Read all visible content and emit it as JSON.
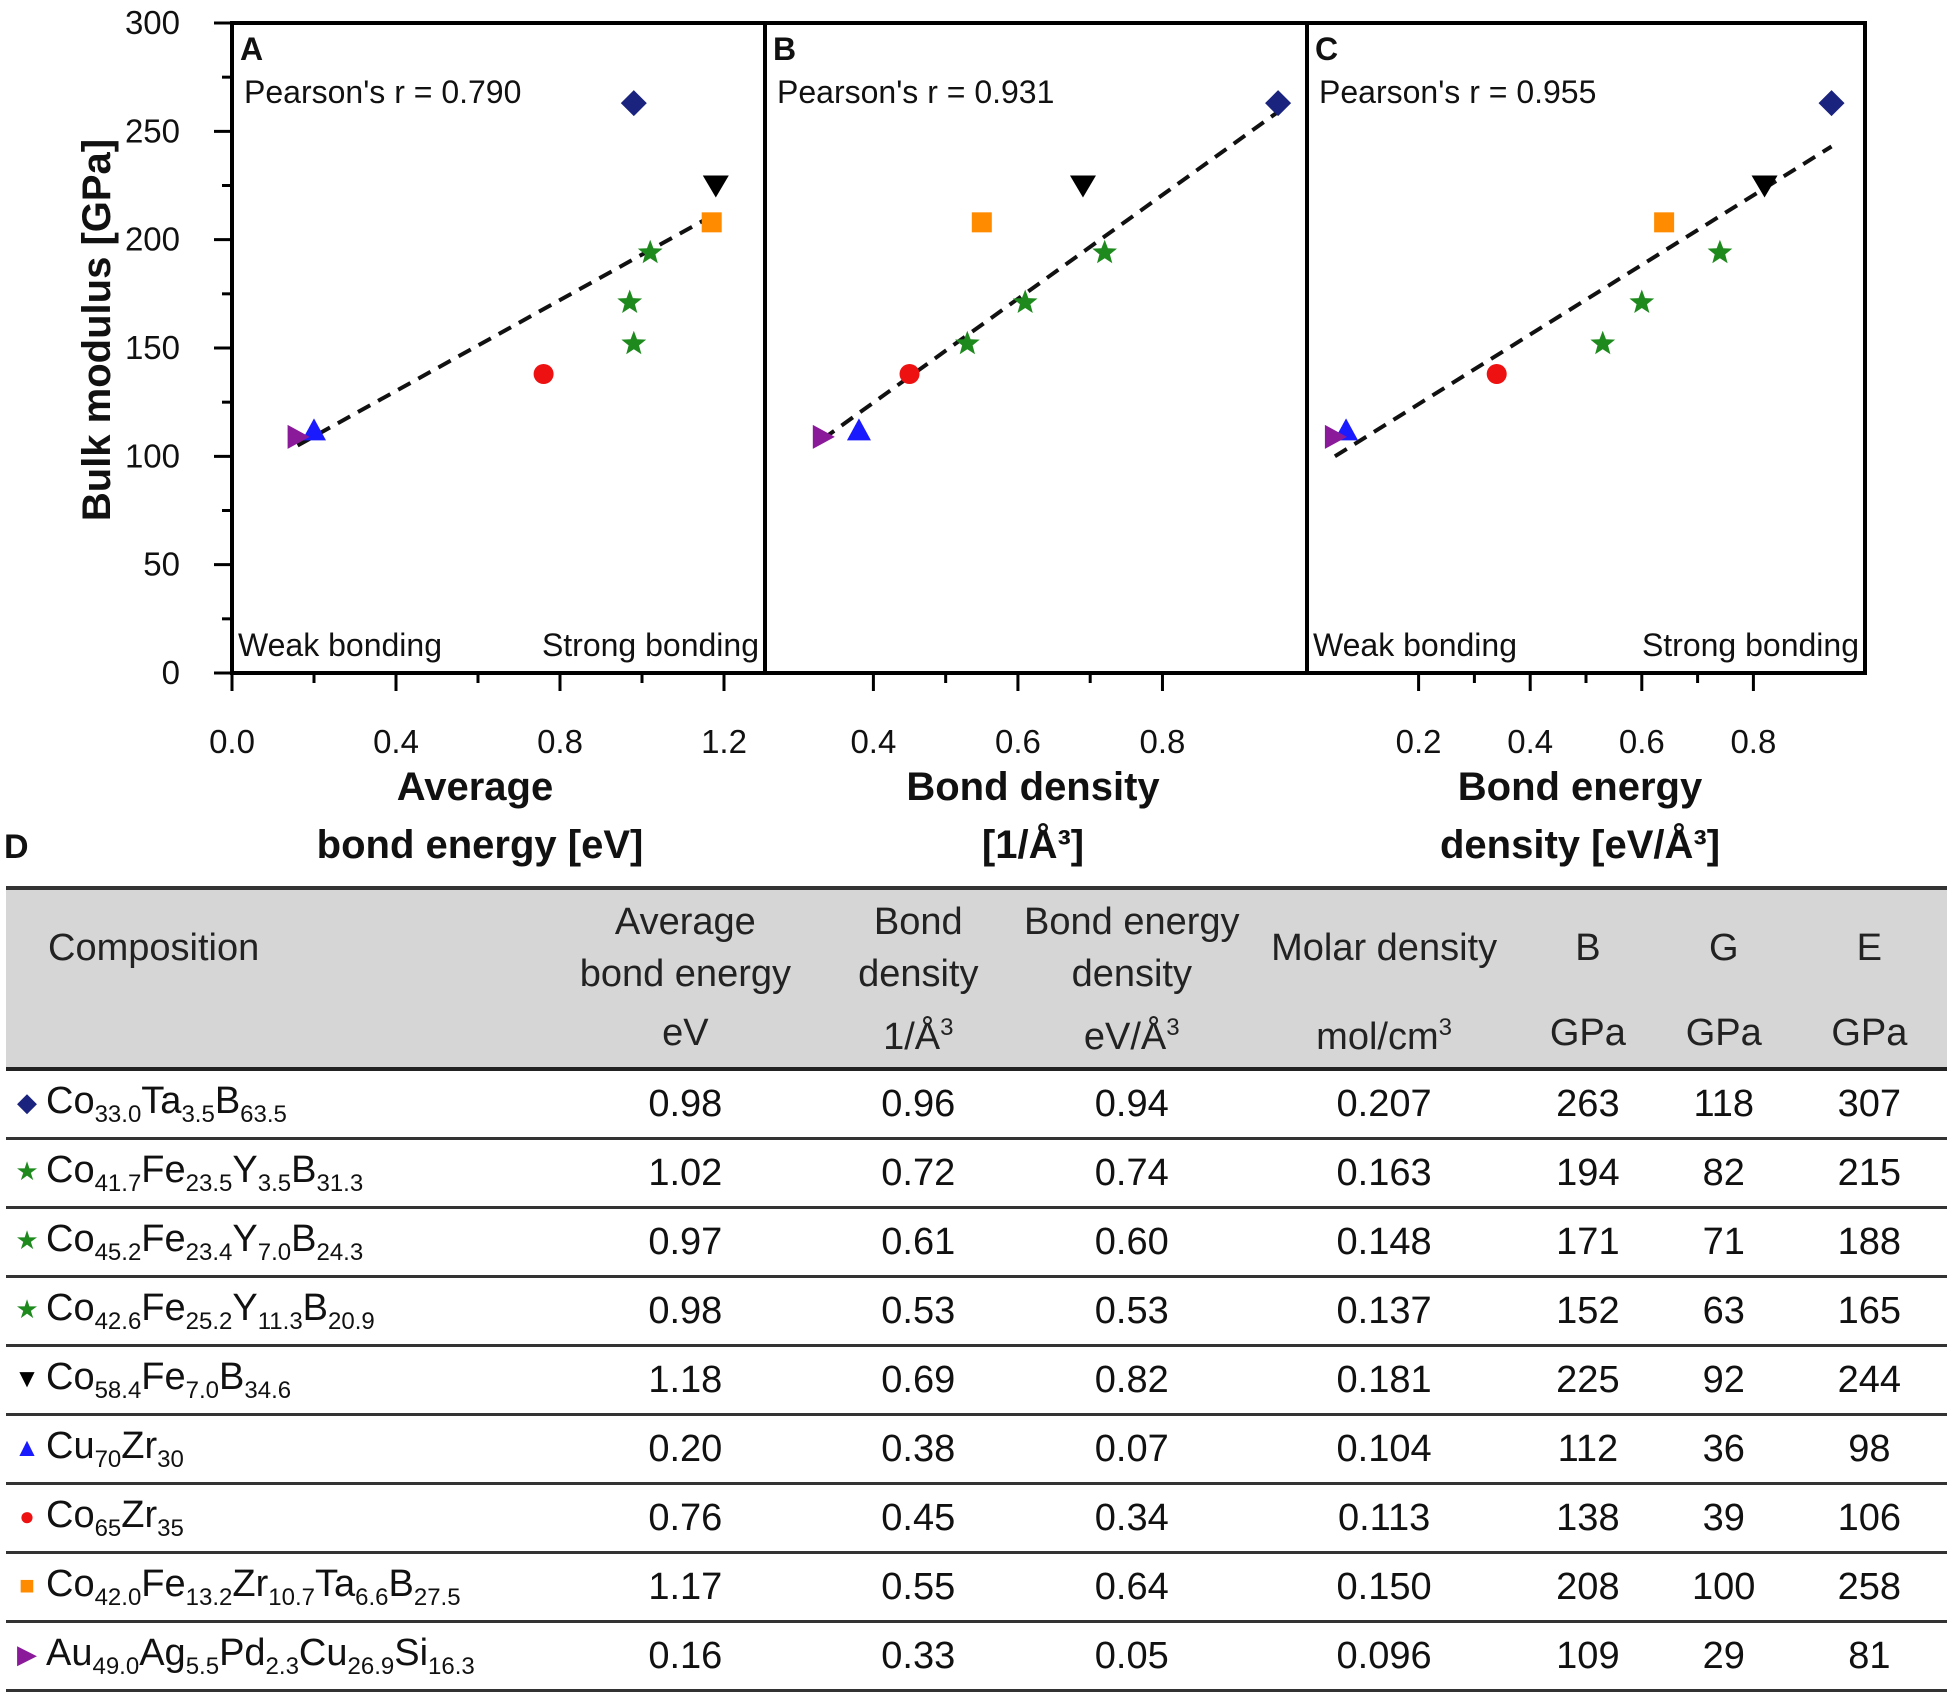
{
  "chart_data": [
    {
      "type": "scatter",
      "panel": "A",
      "annotation": "Pearson's r = 0.790",
      "notes": [
        "Weak bonding",
        "Strong bonding"
      ],
      "xlabel_lines": [
        "Average",
        "bond energy [eV]"
      ],
      "ylabel": "Bulk modulus [GPa]",
      "xlim": [
        0.0,
        1.3
      ],
      "ylim": [
        0,
        300
      ],
      "xticks": [
        "0.0",
        "0.4",
        "0.8",
        "1.2"
      ],
      "xtick_values": [
        0.0,
        0.4,
        0.8,
        1.2
      ],
      "yticks": [
        "0",
        "50",
        "100",
        "150",
        "200",
        "250",
        "300"
      ],
      "ytick_values": [
        0,
        50,
        100,
        150,
        200,
        250,
        300
      ],
      "x": [
        0.98,
        1.02,
        0.97,
        0.98,
        1.18,
        0.2,
        0.76,
        1.17,
        0.16
      ],
      "y": [
        263,
        194,
        171,
        152,
        225,
        112,
        138,
        208,
        109
      ],
      "fit": {
        "x": [
          0.16,
          1.18
        ],
        "y": [
          105,
          212
        ]
      }
    },
    {
      "type": "scatter",
      "panel": "B",
      "annotation": "Pearson's r = 0.931",
      "notes": [],
      "xlabel_lines": [
        "Bond density",
        "[1/Å³]"
      ],
      "xlim": [
        0.25,
        1.0
      ],
      "ylim": [
        0,
        300
      ],
      "xticks": [
        "0.4",
        "0.6",
        "0.8"
      ],
      "xtick_values": [
        0.4,
        0.6,
        0.8
      ],
      "x": [
        0.96,
        0.72,
        0.61,
        0.53,
        0.69,
        0.38,
        0.45,
        0.55,
        0.33
      ],
      "y": [
        263,
        194,
        171,
        152,
        225,
        112,
        138,
        208,
        109
      ],
      "fit": {
        "x": [
          0.33,
          0.96
        ],
        "y": [
          108,
          259
        ]
      }
    },
    {
      "type": "scatter",
      "panel": "C",
      "annotation": "Pearson's r = 0.955",
      "notes": [
        "Weak bonding",
        "Strong bonding"
      ],
      "xlabel_lines": [
        "Bond energy",
        "density [eV/Å³]"
      ],
      "xlim": [
        0.0,
        1.0
      ],
      "ylim": [
        0,
        300
      ],
      "xticks": [
        "0.2",
        "0.4",
        "0.6",
        "0.8"
      ],
      "xtick_values": [
        0.2,
        0.4,
        0.6,
        0.8
      ],
      "x": [
        0.94,
        0.74,
        0.6,
        0.53,
        0.82,
        0.07,
        0.34,
        0.64,
        0.05
      ],
      "y": [
        263,
        194,
        171,
        152,
        225,
        112,
        138,
        208,
        109
      ],
      "fit": {
        "x": [
          0.05,
          0.94
        ],
        "y": [
          100,
          243
        ]
      }
    }
  ],
  "markers": [
    {
      "shape": "diamond",
      "color": "#1a237e"
    },
    {
      "shape": "star",
      "color": "#1e8a1e"
    },
    {
      "shape": "star",
      "color": "#1e8a1e"
    },
    {
      "shape": "star",
      "color": "#1e8a1e"
    },
    {
      "shape": "triangle-down",
      "color": "#000000"
    },
    {
      "shape": "triangle-up",
      "color": "#1a1aff"
    },
    {
      "shape": "circle",
      "color": "#ee1111"
    },
    {
      "shape": "square",
      "color": "#ff8c00"
    },
    {
      "shape": "triangle-right",
      "color": "#8b1a9b"
    }
  ],
  "table": {
    "label": "D",
    "headers": [
      {
        "name": "Composition",
        "unit": ""
      },
      {
        "name_lines": [
          "Average",
          "bond energy"
        ],
        "unit": "eV"
      },
      {
        "name_lines": [
          "Bond",
          "density"
        ],
        "unit": "1/Å³"
      },
      {
        "name_lines": [
          "Bond energy",
          "density"
        ],
        "unit": "eV/Å³"
      },
      {
        "name": "Molar density",
        "unit": "mol/cm³"
      },
      {
        "name": "B",
        "unit": "GPa"
      },
      {
        "name": "G",
        "unit": "GPa"
      },
      {
        "name": "E",
        "unit": "GPa"
      }
    ],
    "rows": [
      {
        "marker": "◆",
        "color": "#1a237e",
        "composition": [
          [
            "Co",
            "33.0"
          ],
          [
            "Ta",
            "3.5"
          ],
          [
            "B",
            "63.5"
          ]
        ],
        "values": [
          "0.98",
          "0.96",
          "0.94",
          "0.207",
          "263",
          "118",
          "307"
        ]
      },
      {
        "marker": "★",
        "color": "#1e8a1e",
        "composition": [
          [
            "Co",
            "41.7"
          ],
          [
            "Fe",
            "23.5"
          ],
          [
            "Y",
            "3.5"
          ],
          [
            "B",
            "31.3"
          ]
        ],
        "values": [
          "1.02",
          "0.72",
          "0.74",
          "0.163",
          "194",
          "82",
          "215"
        ]
      },
      {
        "marker": "★",
        "color": "#1e8a1e",
        "composition": [
          [
            "Co",
            "45.2"
          ],
          [
            "Fe",
            "23.4"
          ],
          [
            "Y",
            "7.0"
          ],
          [
            "B",
            "24.3"
          ]
        ],
        "values": [
          "0.97",
          "0.61",
          "0.60",
          "0.148",
          "171",
          "71",
          "188"
        ]
      },
      {
        "marker": "★",
        "color": "#1e8a1e",
        "composition": [
          [
            "Co",
            "42.6"
          ],
          [
            "Fe",
            "25.2"
          ],
          [
            "Y",
            "11.3"
          ],
          [
            "B",
            "20.9"
          ]
        ],
        "values": [
          "0.98",
          "0.53",
          "0.53",
          "0.137",
          "152",
          "63",
          "165"
        ]
      },
      {
        "marker": "▼",
        "color": "#000000",
        "composition": [
          [
            "Co",
            "58.4"
          ],
          [
            "Fe",
            "7.0"
          ],
          [
            "B",
            "34.6"
          ]
        ],
        "values": [
          "1.18",
          "0.69",
          "0.82",
          "0.181",
          "225",
          "92",
          "244"
        ]
      },
      {
        "marker": "▲",
        "color": "#1a1aff",
        "composition": [
          [
            "Cu",
            "70"
          ],
          [
            "Zr",
            "30"
          ]
        ],
        "values": [
          "0.20",
          "0.38",
          "0.07",
          "0.104",
          "112",
          "36",
          "98"
        ]
      },
      {
        "marker": "●",
        "color": "#ee1111",
        "composition": [
          [
            "Co",
            "65"
          ],
          [
            "Zr",
            "35"
          ]
        ],
        "values": [
          "0.76",
          "0.45",
          "0.34",
          "0.113",
          "138",
          "39",
          "106"
        ]
      },
      {
        "marker": "■",
        "color": "#ff8c00",
        "composition": [
          [
            "Co",
            "42.0"
          ],
          [
            "Fe",
            "13.2"
          ],
          [
            "Zr",
            "10.7"
          ],
          [
            "Ta",
            "6.6"
          ],
          [
            "B",
            "27.5"
          ]
        ],
        "values": [
          "1.17",
          "0.55",
          "0.64",
          "0.150",
          "208",
          "100",
          "258"
        ]
      },
      {
        "marker": "▶",
        "color": "#8b1a9b",
        "composition": [
          [
            "Au",
            "49.0"
          ],
          [
            "Ag",
            "5.5"
          ],
          [
            "Pd",
            "2.3"
          ],
          [
            "Cu",
            "26.9"
          ],
          [
            "Si",
            "16.3"
          ]
        ],
        "values": [
          "0.16",
          "0.33",
          "0.05",
          "0.096",
          "109",
          "29",
          "81"
        ]
      }
    ]
  }
}
